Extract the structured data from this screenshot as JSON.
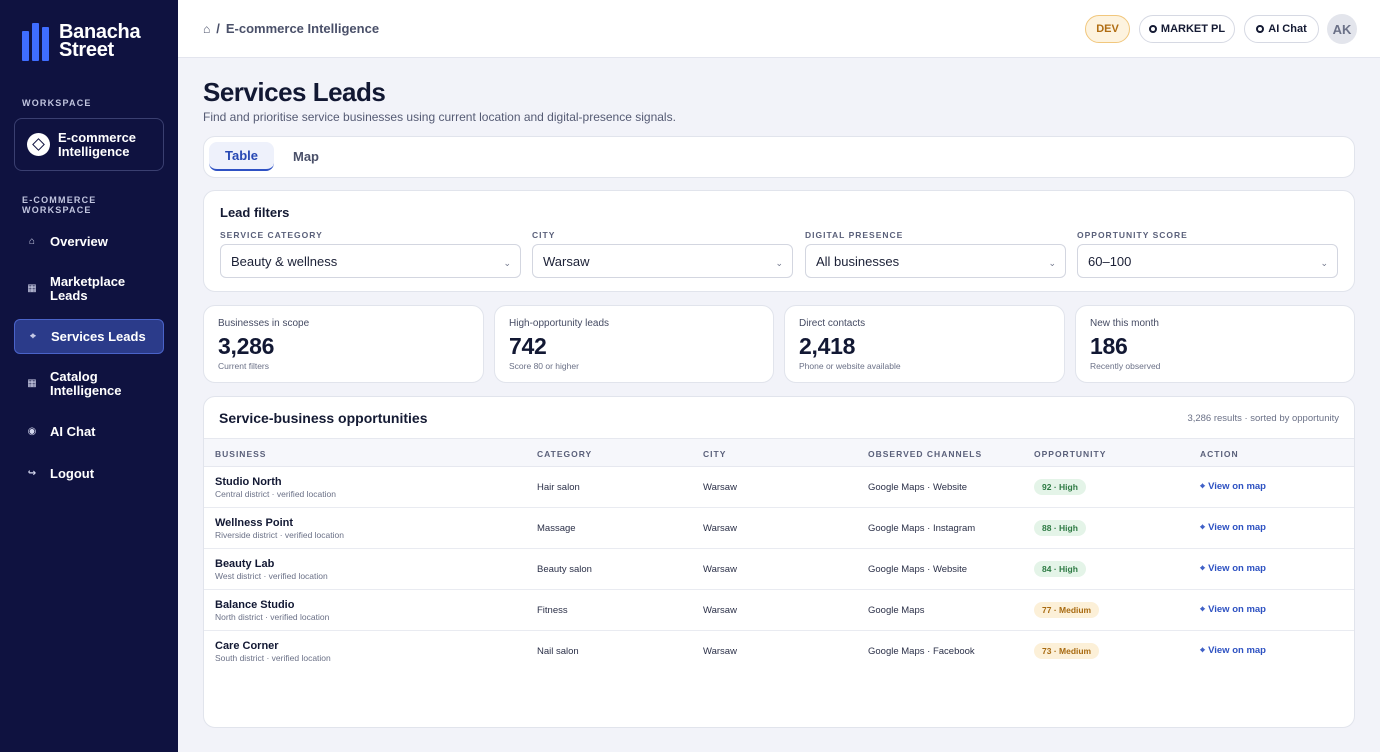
{
  "brand": {
    "line1": "Banacha",
    "line2": "Street",
    "accent": "#3f6dff"
  },
  "sidebar": {
    "workspace_label": "WORKSPACE",
    "workspace_name_1": "E-commerce",
    "workspace_name_2": "Intelligence",
    "section_label_1": "E-COMMERCE",
    "section_label_2": "WORKSPACE",
    "items": [
      {
        "label": "Overview",
        "icon": "home-icon"
      },
      {
        "label_1": "Marketplace",
        "label_2": "Leads",
        "icon": "grid-icon"
      },
      {
        "label": "Services Leads",
        "icon": "crosshair-icon"
      },
      {
        "label_1": "Catalog",
        "label_2": "Intelligence",
        "icon": "grid-icon"
      },
      {
        "label": "AI Chat",
        "icon": "radio-dot-icon"
      },
      {
        "label": "Logout",
        "icon": "logout-arrow-icon"
      }
    ]
  },
  "topbar": {
    "breadcrumb_sep": "/",
    "breadcrumb": "E-commerce Intelligence",
    "env_badge": "DEV",
    "market_button": "MARKET PL",
    "ai_chat_button": "AI Chat",
    "avatar_initials": "AK"
  },
  "page": {
    "title": "Services Leads",
    "subtitle": "Find and prioritise service businesses using current location and digital-presence signals.",
    "tabs": [
      {
        "label": "Table",
        "active": true
      },
      {
        "label": "Map",
        "active": false
      }
    ]
  },
  "filters": {
    "title": "Lead filters",
    "fields": [
      {
        "label": "SERVICE CATEGORY",
        "value": "Beauty & wellness"
      },
      {
        "label": "CITY",
        "value": "Warsaw"
      },
      {
        "label": "DIGITAL PRESENCE",
        "value": "All businesses"
      },
      {
        "label": "OPPORTUNITY SCORE",
        "value": "60–100"
      }
    ]
  },
  "stats": [
    {
      "label": "Businesses in scope",
      "value": "3,286",
      "sub": "Current filters"
    },
    {
      "label": "High-opportunity leads",
      "value": "742",
      "sub": "Score 80 or higher"
    },
    {
      "label": "Direct contacts",
      "value": "2,418",
      "sub": "Phone or website available"
    },
    {
      "label": "New this month",
      "value": "186",
      "sub": "Recently observed"
    }
  ],
  "table": {
    "title": "Service-business opportunities",
    "meta": "3,286 results · sorted by opportunity",
    "columns": [
      "BUSINESS",
      "CATEGORY",
      "CITY",
      "OBSERVED CHANNELS",
      "OPPORTUNITY",
      "ACTION"
    ],
    "rows": [
      {
        "name": "Studio North",
        "location": "Central district · verified location",
        "category": "Hair salon",
        "city": "Warsaw",
        "channels": "Google Maps · Website",
        "opportunity": "92 · High",
        "level": "high",
        "action": "View on map"
      },
      {
        "name": "Wellness Point",
        "location": "Riverside district · verified location",
        "category": "Massage",
        "city": "Warsaw",
        "channels": "Google Maps · Instagram",
        "opportunity": "88 · High",
        "level": "high",
        "action": "View on map"
      },
      {
        "name": "Beauty Lab",
        "location": "West district · verified location",
        "category": "Beauty salon",
        "city": "Warsaw",
        "channels": "Google Maps · Website",
        "opportunity": "84 · High",
        "level": "high",
        "action": "View on map"
      },
      {
        "name": "Balance Studio",
        "location": "North district · verified location",
        "category": "Fitness",
        "city": "Warsaw",
        "channels": "Google Maps",
        "opportunity": "77 · Medium",
        "level": "medium",
        "action": "View on map"
      },
      {
        "name": "Care Corner",
        "location": "South district · verified location",
        "category": "Nail salon",
        "city": "Warsaw",
        "channels": "Google Maps · Facebook",
        "opportunity": "73 · Medium",
        "level": "medium",
        "action": "View on map"
      }
    ]
  }
}
